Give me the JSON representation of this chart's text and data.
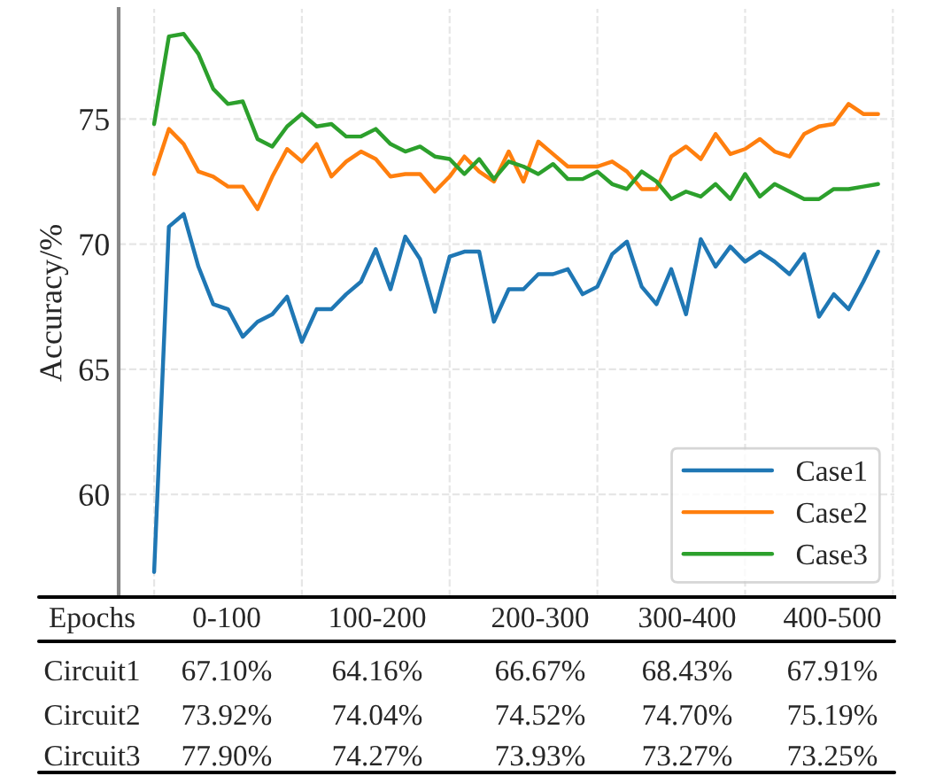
{
  "chart_data": {
    "type": "line",
    "ylabel": "Accuracy/%",
    "categories": [
      null,
      null,
      null,
      null,
      null,
      null,
      null,
      null,
      null,
      null,
      null,
      null,
      null,
      null,
      null,
      null,
      null,
      null,
      null,
      null,
      null,
      null,
      null,
      null,
      null,
      null,
      null,
      null,
      null,
      null,
      null,
      null,
      null,
      null,
      null,
      null,
      null,
      null,
      null,
      null,
      null,
      null,
      null,
      null,
      null,
      null,
      null,
      null,
      null,
      null
    ],
    "ylim": [
      55.9,
      79.4
    ],
    "yticks": [
      60,
      65,
      70,
      75
    ],
    "grid": true,
    "legend": "lower right",
    "line_style": "solid",
    "series": [
      {
        "name": "Case1",
        "color": "#1f77b4",
        "values": [
          56.9,
          70.7,
          71.2,
          69.1,
          67.6,
          67.4,
          66.3,
          66.9,
          67.2,
          67.9,
          66.1,
          67.4,
          67.4,
          68.0,
          68.5,
          69.8,
          68.2,
          70.3,
          69.4,
          67.3,
          69.5,
          69.7,
          69.7,
          66.9,
          68.2,
          68.2,
          68.8,
          68.8,
          69.0,
          68.0,
          68.3,
          69.6,
          70.1,
          68.3,
          67.6,
          69.0,
          67.2,
          70.2,
          69.1,
          69.9,
          69.3,
          69.7,
          69.3,
          68.8,
          69.6,
          67.1,
          68.0,
          67.4,
          68.5,
          69.7
        ]
      },
      {
        "name": "Case2",
        "color": "#ff7f0e",
        "values": [
          72.8,
          74.6,
          74.0,
          72.9,
          72.7,
          72.3,
          72.3,
          71.4,
          72.7,
          73.8,
          73.3,
          74.0,
          72.7,
          73.3,
          73.7,
          73.4,
          72.7,
          72.8,
          72.8,
          72.1,
          72.7,
          73.5,
          72.9,
          72.5,
          73.7,
          72.5,
          74.1,
          73.6,
          73.1,
          73.1,
          73.1,
          73.3,
          72.9,
          72.2,
          72.2,
          73.5,
          73.9,
          73.4,
          74.4,
          73.6,
          73.8,
          74.2,
          73.7,
          73.5,
          74.4,
          74.7,
          74.8,
          75.6,
          75.2,
          75.2
        ]
      },
      {
        "name": "Case3",
        "color": "#2ca02c",
        "values": [
          74.8,
          78.3,
          78.4,
          77.6,
          76.2,
          75.6,
          75.7,
          74.2,
          73.9,
          74.7,
          75.2,
          74.7,
          74.8,
          74.3,
          74.3,
          74.6,
          74.0,
          73.7,
          73.9,
          73.5,
          73.4,
          72.8,
          73.4,
          72.6,
          73.3,
          73.1,
          72.8,
          73.2,
          72.6,
          72.6,
          72.9,
          72.4,
          72.2,
          72.9,
          72.5,
          71.8,
          72.1,
          71.9,
          72.4,
          71.8,
          72.8,
          71.9,
          72.4,
          72.1,
          71.8,
          71.8,
          72.2,
          72.2,
          72.3,
          72.4
        ]
      }
    ],
    "annotations": [
      "Epochs",
      "0-100",
      "100-200",
      "200-300",
      "300-400",
      "400-500",
      "Circuit1",
      "67.10%",
      "64.16%",
      "66.67%",
      "68.43%",
      "67.91%",
      "Circuit2",
      "73.92%",
      "74.04%",
      "74.52%",
      "74.70%",
      "75.19%",
      "Circuit3",
      "77.90%",
      "74.27%",
      "73.93%",
      "73.27%",
      "73.25%"
    ]
  }
}
